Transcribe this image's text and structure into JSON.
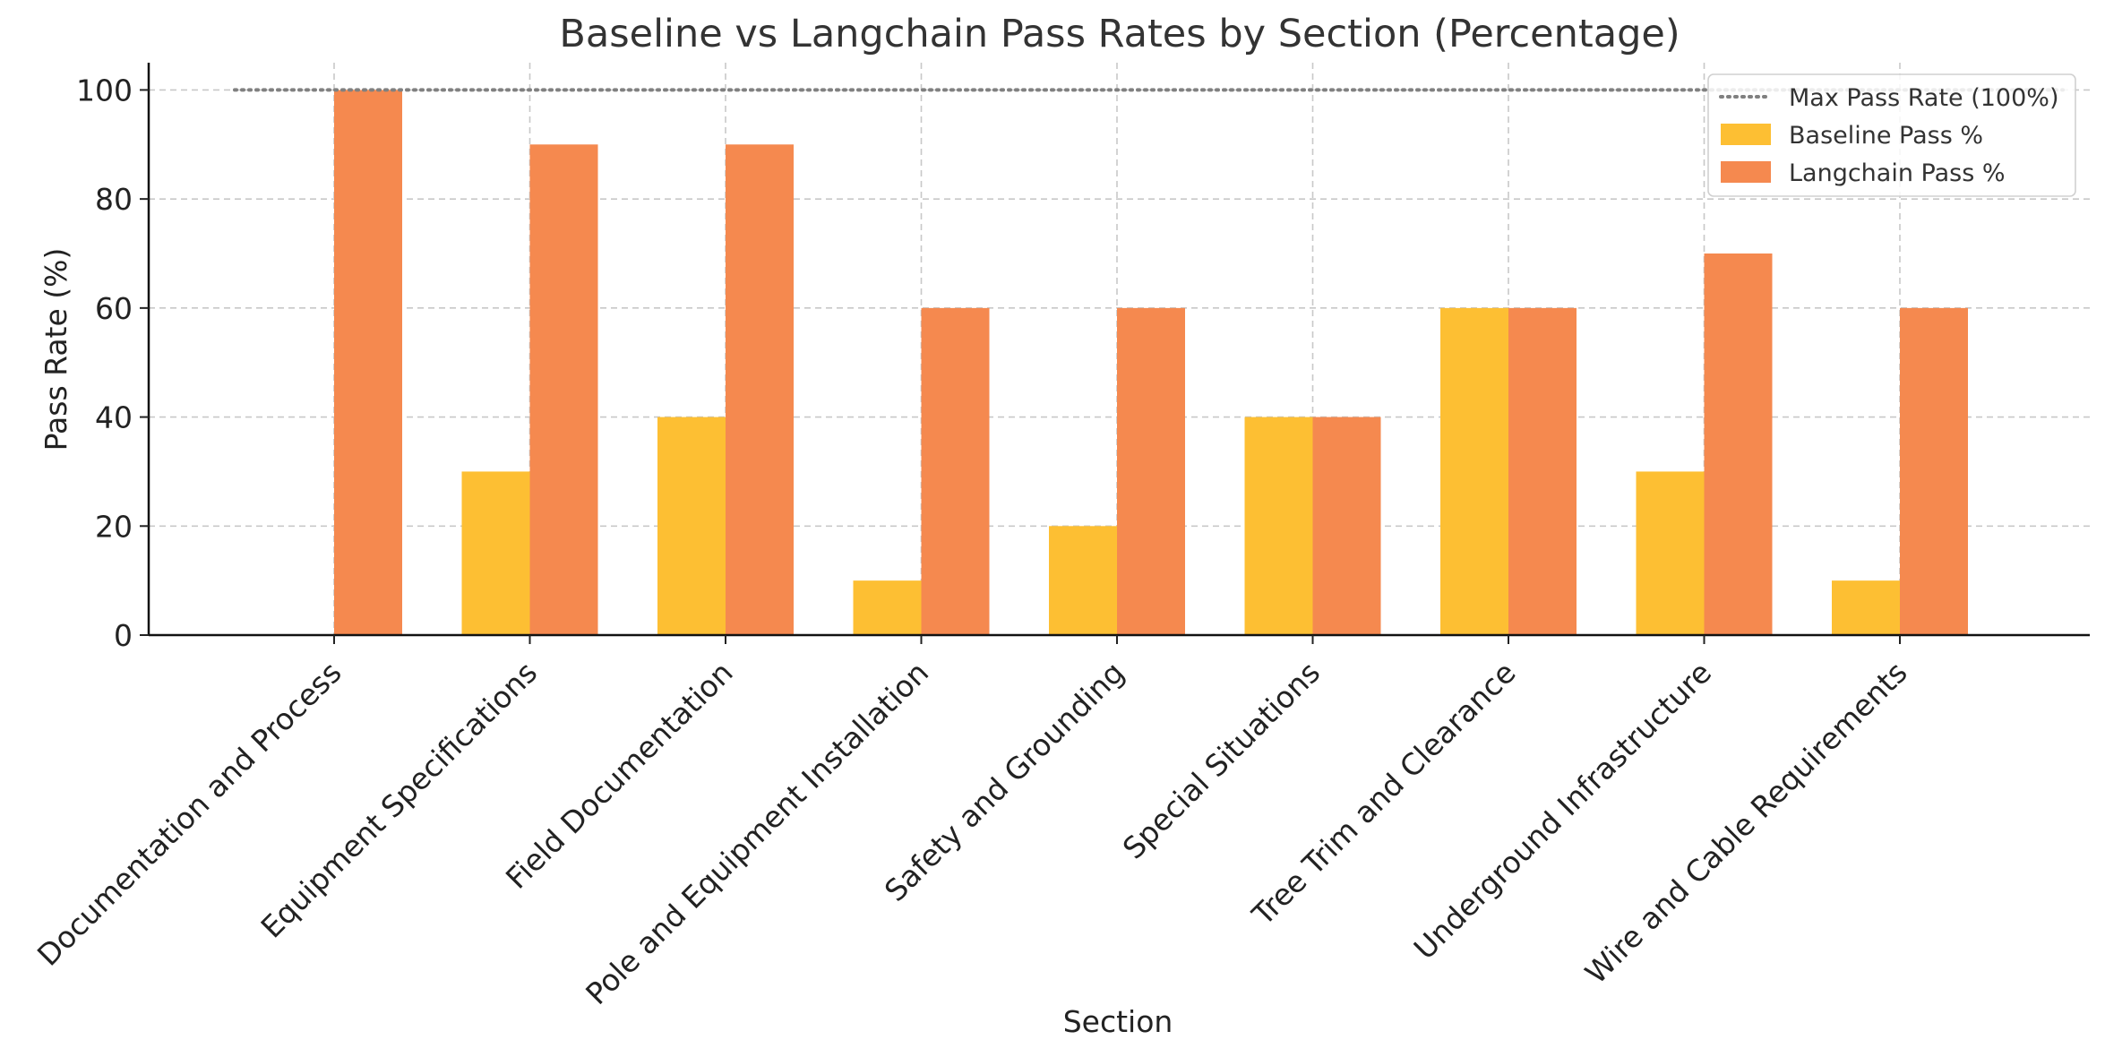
{
  "chart_data": {
    "type": "bar",
    "title": "Baseline vs Langchain Pass Rates by Section (Percentage)",
    "xlabel": "Section",
    "ylabel": "Pass Rate (%)",
    "ylim": [
      0,
      105
    ],
    "yticks": [
      0,
      20,
      40,
      60,
      80,
      100
    ],
    "grid": true,
    "legend_position": "top-right",
    "categories": [
      "Documentation and Process",
      "Equipment Specifications",
      "Field Documentation",
      "Pole and Equipment Installation",
      "Safety and Grounding",
      "Special Situations",
      "Tree Trim and Clearance",
      "Underground Infrastructure",
      "Wire and Cable Requirements"
    ],
    "series": [
      {
        "name": "Baseline Pass %",
        "color": "#fdbf33",
        "values": [
          0,
          30,
          40,
          10,
          20,
          40,
          60,
          30,
          10
        ]
      },
      {
        "name": "Langchain Pass %",
        "color": "#f5894f",
        "values": [
          100,
          90,
          90,
          60,
          60,
          40,
          60,
          70,
          60
        ]
      }
    ],
    "reference_line": {
      "name": "Max Pass Rate (100%)",
      "value": 100,
      "color": "#808080",
      "style": "dotted"
    }
  }
}
